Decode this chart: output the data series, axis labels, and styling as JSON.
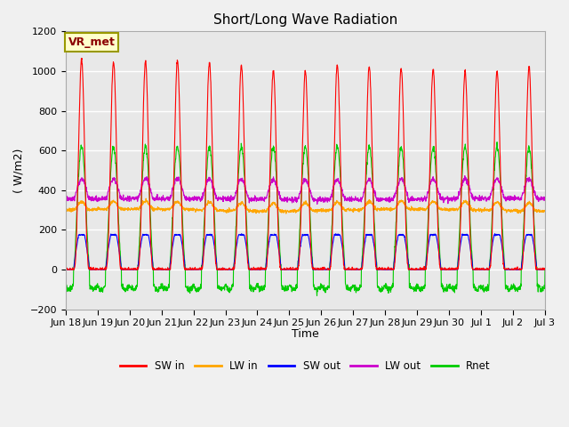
{
  "title": "Short/Long Wave Radiation",
  "ylabel": "( W/m2)",
  "xlabel": "Time",
  "ylim": [
    -200,
    1200
  ],
  "annotation_label": "VR_met",
  "background_color": "#f0f0f0",
  "plot_bg_color": "#e8e8e8",
  "grid_color": "#ffffff",
  "x_tick_labels": [
    "Jun 18",
    "Jun 19",
    "Jun 20",
    "Jun 21",
    "Jun 22",
    "Jun 23",
    "Jun 24",
    "Jun 25",
    "Jun 26",
    "Jun 27",
    "Jun 28",
    "Jun 29",
    "Jun 30",
    "Jul 1",
    "Jul 2",
    "Jul 3"
  ],
  "yticks": [
    -200,
    0,
    200,
    400,
    600,
    800,
    1000,
    1200
  ],
  "series": {
    "SW_in": {
      "color": "#ff0000",
      "label": "SW in"
    },
    "LW_in": {
      "color": "#ffa500",
      "label": "LW in"
    },
    "SW_out": {
      "color": "#0000ff",
      "label": "SW out"
    },
    "LW_out": {
      "color": "#cc00cc",
      "label": "LW out"
    },
    "Rnet": {
      "color": "#00cc00",
      "label": "Rnet"
    }
  }
}
